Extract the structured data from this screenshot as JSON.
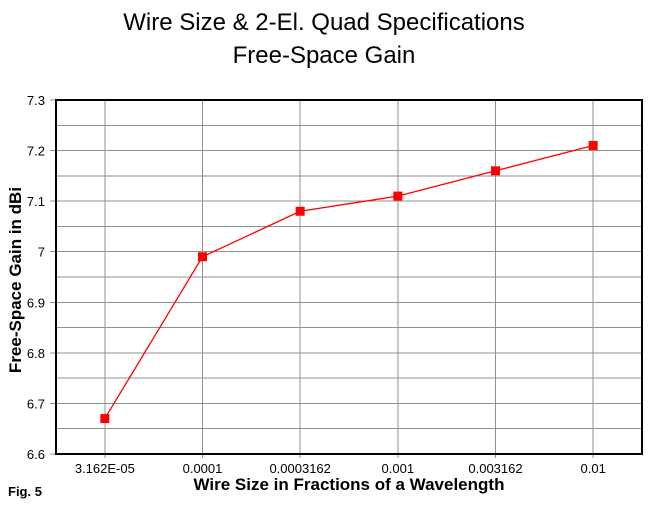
{
  "title": {
    "line1": "Wire Size & 2-El. Quad Specifications",
    "line2": "Free-Space Gain"
  },
  "figure_label": "Fig. 5",
  "chart_data": {
    "type": "line",
    "title": "Wire Size & 2-El. Quad Specifications - Free-Space Gain",
    "xlabel": "Wire Size in Fractions of a Wavelength",
    "ylabel": "Free-Space Gain in dBi",
    "x_scale": "log",
    "categories": [
      "3.162E-05",
      "0.0001",
      "0.0003162",
      "0.001",
      "0.003162",
      "0.01"
    ],
    "series": [
      {
        "name": "Free-Space Gain",
        "values": [
          6.67,
          6.99,
          7.08,
          7.11,
          7.16,
          7.21
        ],
        "color": "#ff0000",
        "marker": "square"
      }
    ],
    "ylim": [
      6.6,
      7.3
    ],
    "y_major_step": 0.1,
    "y_minor_step": 0.05,
    "y_tick_labels": [
      "6.6",
      "6.7",
      "6.8",
      "6.9",
      "7",
      "7.1",
      "7.2",
      "7.3"
    ],
    "grid": true,
    "legend": "none",
    "colors": {
      "gridline": "#909090",
      "frame": "#000000",
      "background": "#ffffff",
      "text": "#000000"
    }
  }
}
